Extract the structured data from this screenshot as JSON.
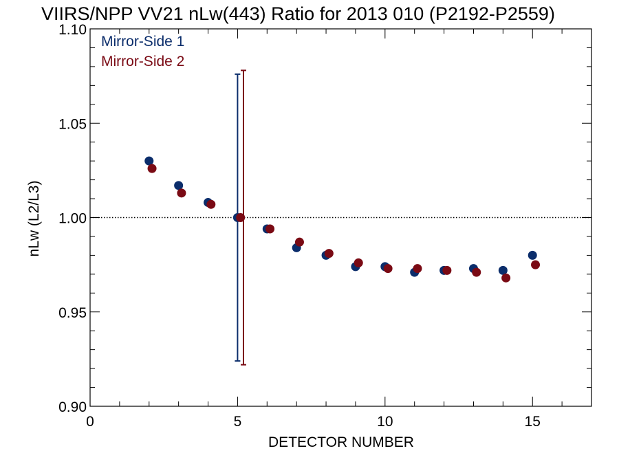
{
  "chart_data": {
    "type": "scatter",
    "title": "VIIRS/NPP VV21 nLw(443) Ratio for 2013 010 (P2192-P2559)",
    "xlabel": "DETECTOR NUMBER",
    "ylabel": "nLw (L2/L3)",
    "xlim": [
      0,
      17
    ],
    "ylim": [
      0.9,
      1.1
    ],
    "x_ticks": [
      0,
      5,
      10,
      15
    ],
    "x_tick_labels": [
      "0",
      "5",
      "10",
      "15"
    ],
    "y_ticks": [
      0.9,
      0.95,
      1.0,
      1.05,
      1.1
    ],
    "y_tick_labels": [
      "0.90",
      "0.95",
      "1.00",
      "1.05",
      "1.10"
    ],
    "x_minor_step": 1,
    "y_minor_step": 0.01,
    "reference_line": 1.0,
    "legend_position": "top-left",
    "series": [
      {
        "name": "Mirror-Side 1",
        "color": "#0b2d6b",
        "x": [
          2,
          3,
          4,
          5,
          6,
          7,
          8,
          9,
          10,
          11,
          12,
          13,
          14,
          15
        ],
        "values": [
          1.03,
          1.017,
          1.008,
          1.0,
          0.994,
          0.984,
          0.98,
          0.974,
          0.974,
          0.971,
          0.972,
          0.973,
          0.972,
          0.98
        ],
        "error_bar": {
          "x": 5,
          "low": 0.924,
          "high": 1.076
        }
      },
      {
        "name": "Mirror-Side 2",
        "color": "#7a0a14",
        "x": [
          2.1,
          3.1,
          4.1,
          5.1,
          6.1,
          7.1,
          8.1,
          9.1,
          10.1,
          11.1,
          12.1,
          13.1,
          14.1,
          15.1
        ],
        "values": [
          1.026,
          1.013,
          1.007,
          1.0,
          0.994,
          0.987,
          0.981,
          0.976,
          0.973,
          0.973,
          0.972,
          0.971,
          0.968,
          0.975
        ],
        "error_bar": {
          "x": 5.2,
          "low": 0.922,
          "high": 1.078
        }
      }
    ]
  }
}
